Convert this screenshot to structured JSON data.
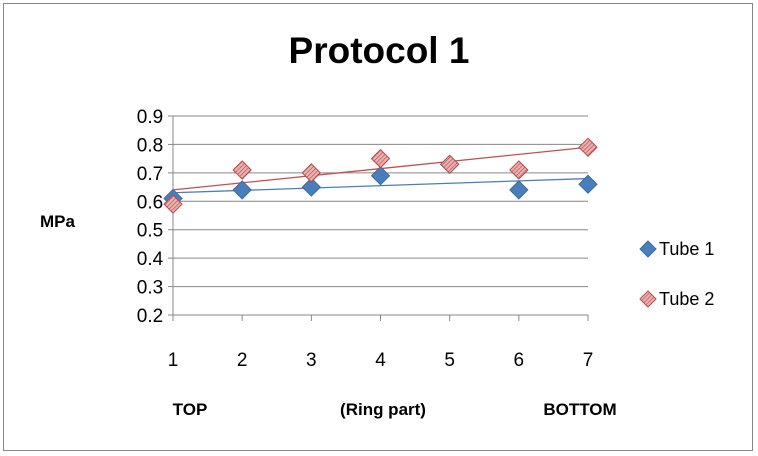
{
  "chart_data": {
    "type": "scatter",
    "title": "Protocol 1",
    "ylabel": "MPa",
    "xlabel": "",
    "x": [
      1,
      2,
      3,
      4,
      5,
      6,
      7
    ],
    "xlim": [
      1,
      7
    ],
    "ylim": [
      0.2,
      0.9
    ],
    "yticks": [
      "0.2",
      "0.3",
      "0.4",
      "0.5",
      "0.6",
      "0.7",
      "0.8",
      "0.9"
    ],
    "xticks": [
      "1",
      "2",
      "3",
      "4",
      "5",
      "6",
      "7"
    ],
    "grid": true,
    "legend_position": "right",
    "bottom_labels": {
      "left": "TOP",
      "center": "(Ring part)",
      "right": "BOTTOM"
    },
    "series": [
      {
        "name": "Tube 1",
        "values": [
          0.61,
          0.64,
          0.65,
          0.69,
          0.73,
          0.64,
          0.66
        ],
        "color": "#4a7ebb",
        "marker": "diamond",
        "trendline": {
          "start": 0.63,
          "end": 0.68,
          "color": "#4a7ebb"
        }
      },
      {
        "name": "Tube 2",
        "values": [
          0.59,
          0.71,
          0.7,
          0.75,
          0.73,
          0.71,
          0.79
        ],
        "color": "#c0504d",
        "marker": "diamond-hatched",
        "trendline": {
          "start": 0.64,
          "end": 0.79,
          "color": "#c0504d"
        }
      }
    ]
  }
}
